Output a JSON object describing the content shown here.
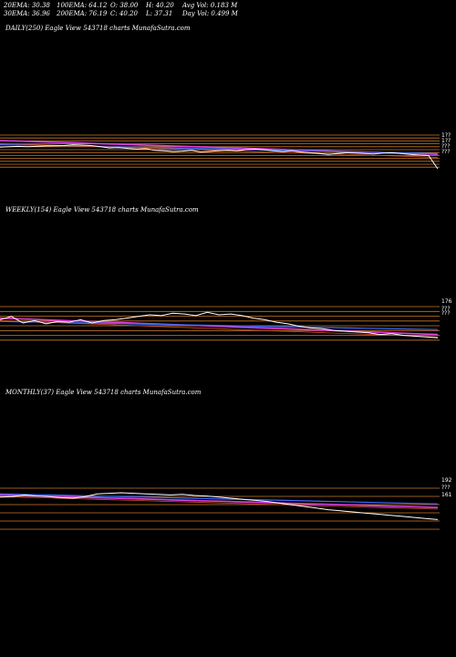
{
  "stats": {
    "row1": [
      "20EMA: 30.38",
      "100EMA: 64.12",
      "O: 38.00",
      "H: 40.20",
      "Avg Vol: 0.183 M"
    ],
    "row2": [
      "30EMA: 36.96",
      "200EMA: 76.19",
      "C: 40.20",
      "L: 37.31",
      "Day Vol: 0.499 M"
    ]
  },
  "panels": [
    {
      "label": "DAILY(250) Eagle  View  543718 charts MunafaSutra.com",
      "price_labels": [
        "1??",
        "1??",
        "???",
        "???"
      ]
    },
    {
      "label": "WEEKLY(154) Eagle  View  543718 charts MunafaSutra.com",
      "price_labels": [
        "176",
        "???",
        "???"
      ]
    },
    {
      "label": "MONTHLY(37) Eagle  View  543718 charts MunafaSutra.com",
      "price_labels": [
        "192",
        "???",
        "161"
      ]
    }
  ],
  "colors": {
    "price": "#ffffff",
    "ema_fast": "#3b6cff",
    "ema_mid": "#e040e0",
    "ema_slow": "#d05020",
    "hline": "#c87828"
  },
  "chart_data": [
    {
      "type": "line",
      "name": "daily",
      "price": [
        0.42,
        0.4,
        0.38,
        0.4,
        0.38,
        0.36,
        0.35,
        0.34,
        0.3,
        0.32,
        0.34,
        0.4,
        0.46,
        0.44,
        0.48,
        0.52,
        0.5,
        0.58,
        0.6,
        0.64,
        0.62,
        0.58,
        0.66,
        0.63,
        0.6,
        0.58,
        0.6,
        0.54,
        0.52,
        0.56,
        0.6,
        0.64,
        0.6,
        0.66,
        0.7,
        0.74,
        0.78,
        0.74,
        0.7,
        0.72,
        0.74,
        0.76,
        0.72,
        0.7,
        0.74,
        0.78,
        0.82,
        0.84,
        1.5
      ],
      "ema_fast": [
        0.3,
        0.31,
        0.32,
        0.34,
        0.36,
        0.38,
        0.4,
        0.42,
        0.44,
        0.46,
        0.48,
        0.5,
        0.52,
        0.54,
        0.56,
        0.58,
        0.6,
        0.62,
        0.64,
        0.66,
        0.68,
        0.7,
        0.72,
        0.74
      ],
      "ema_mid": [
        0.1,
        0.12,
        0.15,
        0.18,
        0.21,
        0.24,
        0.27,
        0.3,
        0.33,
        0.36,
        0.39,
        0.42,
        0.45,
        0.48,
        0.51,
        0.54,
        0.57,
        0.6,
        0.63,
        0.66,
        0.69,
        0.72,
        0.75,
        0.78
      ],
      "hlines": [
        0.0,
        0.1,
        0.2,
        0.3,
        0.4,
        0.5,
        0.6,
        0.7,
        0.8,
        0.9,
        1.0,
        1.1
      ]
    },
    {
      "type": "line",
      "name": "weekly",
      "price": [
        0.3,
        0.1,
        0.5,
        0.35,
        0.55,
        0.4,
        0.45,
        0.3,
        0.5,
        0.35,
        0.3,
        0.2,
        0.1,
        0.0,
        0.05,
        -0.1,
        -0.05,
        0.05,
        -0.15,
        0.0,
        -0.05,
        0.05,
        0.2,
        0.3,
        0.45,
        0.55,
        0.7,
        0.8,
        0.85,
        0.95,
        1.0,
        1.05,
        1.1,
        1.2,
        1.15,
        1.25,
        1.3,
        1.35,
        1.4
      ],
      "ema_fast": [
        0.4,
        0.42,
        0.44,
        0.46,
        0.48,
        0.5,
        0.52,
        0.54,
        0.56,
        0.58,
        0.6,
        0.62,
        0.64,
        0.66,
        0.68,
        0.7,
        0.72,
        0.74,
        0.76,
        0.78,
        0.8,
        0.82,
        0.84,
        0.86,
        0.88,
        0.9
      ],
      "ema_mid": [
        0.2,
        0.24,
        0.28,
        0.32,
        0.36,
        0.4,
        0.44,
        0.48,
        0.52,
        0.56,
        0.6,
        0.64,
        0.68,
        0.72,
        0.76,
        0.8,
        0.84,
        0.88,
        0.92,
        0.96,
        1.0,
        1.04,
        1.08,
        1.12,
        1.16,
        1.2
      ],
      "hlines": [
        0.0,
        0.15,
        0.3,
        0.45,
        0.6,
        0.75,
        0.9,
        1.05
      ]
    },
    {
      "type": "line",
      "name": "monthly",
      "price": [
        0.4,
        0.35,
        0.2,
        0.3,
        0.35,
        0.45,
        0.5,
        0.35,
        0.1,
        0.05,
        0.0,
        0.05,
        0.1,
        0.15,
        0.2,
        0.15,
        0.25,
        0.3,
        0.4,
        0.5,
        0.6,
        0.7,
        0.8,
        0.95,
        1.1,
        1.25,
        1.4,
        1.55,
        1.65,
        1.75,
        1.85,
        1.95,
        2.05,
        2.15,
        2.25,
        2.35,
        2.45
      ],
      "ema_fast": [
        0.1,
        0.14,
        0.18,
        0.22,
        0.26,
        0.3,
        0.34,
        0.38,
        0.42,
        0.46,
        0.5,
        0.54,
        0.58,
        0.62,
        0.66,
        0.7,
        0.74,
        0.78,
        0.82,
        0.86,
        0.9,
        0.94,
        0.98,
        1.02
      ],
      "ema_mid": [
        0.2,
        0.25,
        0.3,
        0.35,
        0.4,
        0.45,
        0.5,
        0.55,
        0.6,
        0.65,
        0.7,
        0.75,
        0.8,
        0.85,
        0.9,
        0.95,
        1.0,
        1.05,
        1.1,
        1.15,
        1.2,
        1.25,
        1.3,
        1.35
      ],
      "hlines": [
        0.0,
        0.2,
        0.4,
        0.6,
        0.8,
        1.0
      ]
    }
  ]
}
